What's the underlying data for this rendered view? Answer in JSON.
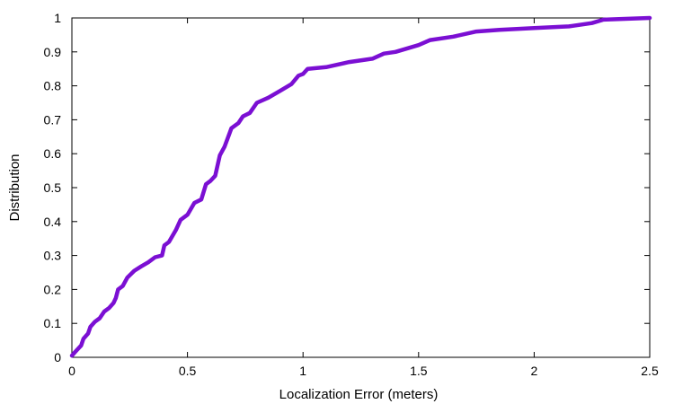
{
  "chart_data": {
    "type": "line",
    "title": "",
    "xlabel": "Localization Error (meters)",
    "ylabel": "Distribution",
    "xlim": [
      0,
      2.5
    ],
    "ylim": [
      0,
      1
    ],
    "xticks": [
      "0",
      "0.5",
      "1",
      "1.5",
      "2",
      "2.5"
    ],
    "yticks": [
      "0",
      "0.1",
      "0.2",
      "0.3",
      "0.4",
      "0.5",
      "0.6",
      "0.7",
      "0.8",
      "0.9",
      "1"
    ],
    "grid": false,
    "legend": "none",
    "series": [
      {
        "color": "#7b0fd3",
        "points": [
          [
            0.0,
            0.005
          ],
          [
            0.02,
            0.02
          ],
          [
            0.04,
            0.035
          ],
          [
            0.05,
            0.055
          ],
          [
            0.07,
            0.07
          ],
          [
            0.08,
            0.09
          ],
          [
            0.1,
            0.105
          ],
          [
            0.12,
            0.115
          ],
          [
            0.14,
            0.135
          ],
          [
            0.16,
            0.145
          ],
          [
            0.18,
            0.16
          ],
          [
            0.19,
            0.175
          ],
          [
            0.2,
            0.2
          ],
          [
            0.22,
            0.21
          ],
          [
            0.24,
            0.235
          ],
          [
            0.27,
            0.255
          ],
          [
            0.3,
            0.268
          ],
          [
            0.33,
            0.28
          ],
          [
            0.36,
            0.295
          ],
          [
            0.39,
            0.3
          ],
          [
            0.4,
            0.33
          ],
          [
            0.42,
            0.34
          ],
          [
            0.45,
            0.375
          ],
          [
            0.47,
            0.405
          ],
          [
            0.5,
            0.42
          ],
          [
            0.53,
            0.455
          ],
          [
            0.56,
            0.465
          ],
          [
            0.58,
            0.51
          ],
          [
            0.6,
            0.52
          ],
          [
            0.62,
            0.535
          ],
          [
            0.64,
            0.595
          ],
          [
            0.66,
            0.62
          ],
          [
            0.69,
            0.675
          ],
          [
            0.72,
            0.69
          ],
          [
            0.74,
            0.71
          ],
          [
            0.77,
            0.72
          ],
          [
            0.8,
            0.75
          ],
          [
            0.85,
            0.765
          ],
          [
            0.9,
            0.785
          ],
          [
            0.95,
            0.805
          ],
          [
            0.98,
            0.83
          ],
          [
            1.0,
            0.835
          ],
          [
            1.02,
            0.85
          ],
          [
            1.1,
            0.855
          ],
          [
            1.2,
            0.87
          ],
          [
            1.3,
            0.88
          ],
          [
            1.35,
            0.895
          ],
          [
            1.4,
            0.9
          ],
          [
            1.5,
            0.92
          ],
          [
            1.55,
            0.935
          ],
          [
            1.65,
            0.945
          ],
          [
            1.75,
            0.96
          ],
          [
            1.85,
            0.965
          ],
          [
            2.0,
            0.97
          ],
          [
            2.15,
            0.975
          ],
          [
            2.25,
            0.985
          ],
          [
            2.3,
            0.995
          ],
          [
            2.5,
            1.0
          ]
        ]
      }
    ]
  }
}
